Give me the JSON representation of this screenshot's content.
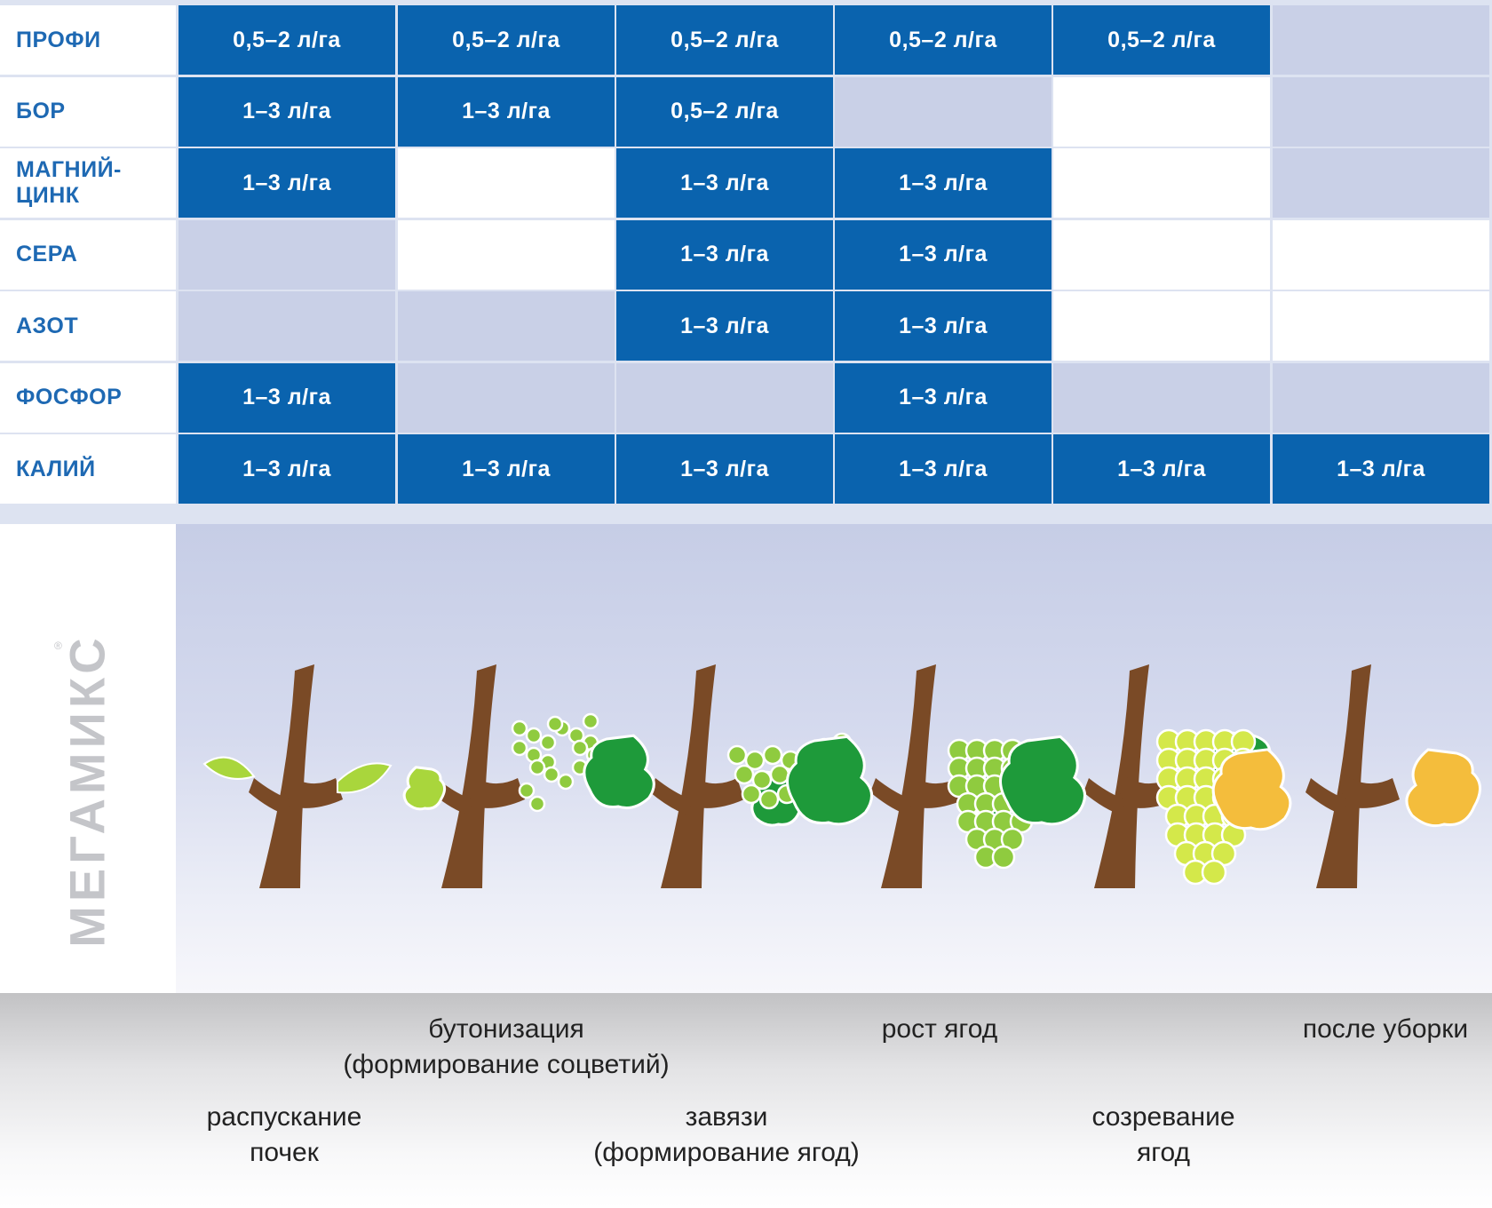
{
  "brand": {
    "name": "МЕГАМИКС",
    "registered": "®"
  },
  "rows": [
    {
      "label": "ПРОФИ",
      "cells": [
        "0,5–2 л/га",
        "0,5–2 л/га",
        "0,5–2 л/га",
        "0,5–2 л/га",
        "0,5–2 л/га",
        null
      ]
    },
    {
      "label": "БОР",
      "cells": [
        "1–3 л/га",
        "1–3 л/га",
        "0,5–2 л/га",
        null,
        null,
        null
      ]
    },
    {
      "label": "МАГНИЙ-\nЦИНК",
      "cells": [
        "1–3 л/га",
        null,
        "1–3 л/га",
        "1–3 л/га",
        null,
        null
      ]
    },
    {
      "label": "СЕРА",
      "cells": [
        null,
        null,
        "1–3 л/га",
        "1–3 л/га",
        null,
        null
      ]
    },
    {
      "label": "АЗОТ",
      "cells": [
        null,
        null,
        "1–3 л/га",
        "1–3 л/га",
        null,
        null
      ]
    },
    {
      "label": "ФОСФОР",
      "cells": [
        "1–3 л/га",
        null,
        null,
        "1–3 л/га",
        null,
        null
      ]
    },
    {
      "label": "КАЛИЙ",
      "cells": [
        "1–3 л/га",
        "1–3 л/га",
        "1–3 л/га",
        "1–3 л/га",
        "1–3 л/га",
        "1–3 л/га"
      ]
    }
  ],
  "empty_cell_tone": [
    [
      null,
      null,
      null,
      null,
      null,
      "grey"
    ],
    [
      null,
      null,
      null,
      "grey",
      "white",
      "grey"
    ],
    [
      null,
      "white",
      null,
      null,
      "white",
      "grey"
    ],
    [
      "grey",
      "white",
      null,
      null,
      "white",
      "white"
    ],
    [
      "grey",
      "grey",
      null,
      null,
      "white",
      "white"
    ],
    [
      null,
      "grey",
      "grey",
      null,
      "grey",
      "grey"
    ],
    [
      null,
      null,
      null,
      null,
      null,
      null
    ]
  ],
  "stages": [
    {
      "text": "распускание\nпочек",
      "icon": "bud-break-plant-icon"
    },
    {
      "text": "бутонизация\n(формирование соцветий)",
      "icon": "budding-plant-icon"
    },
    {
      "text": "завязи\n(формирование ягод)",
      "icon": "fruit-set-plant-icon"
    },
    {
      "text": "рост ягод",
      "icon": "berry-growth-plant-icon"
    },
    {
      "text": "созревание\nягод",
      "icon": "ripening-plant-icon"
    },
    {
      "text": "после  уборки",
      "icon": "post-harvest-plant-icon"
    }
  ],
  "colors": {
    "blue": "#0a63ae",
    "grey": "#c9d0e7",
    "label_text": "#1e69b3",
    "stem": "#7a4a26",
    "leaf_dark": "#1e9a3a",
    "leaf_light": "#a9d63c",
    "berry_green": "#8fcb3f",
    "berry_ripe": "#d4e84a",
    "leaf_autumn": "#f4bd3c"
  }
}
